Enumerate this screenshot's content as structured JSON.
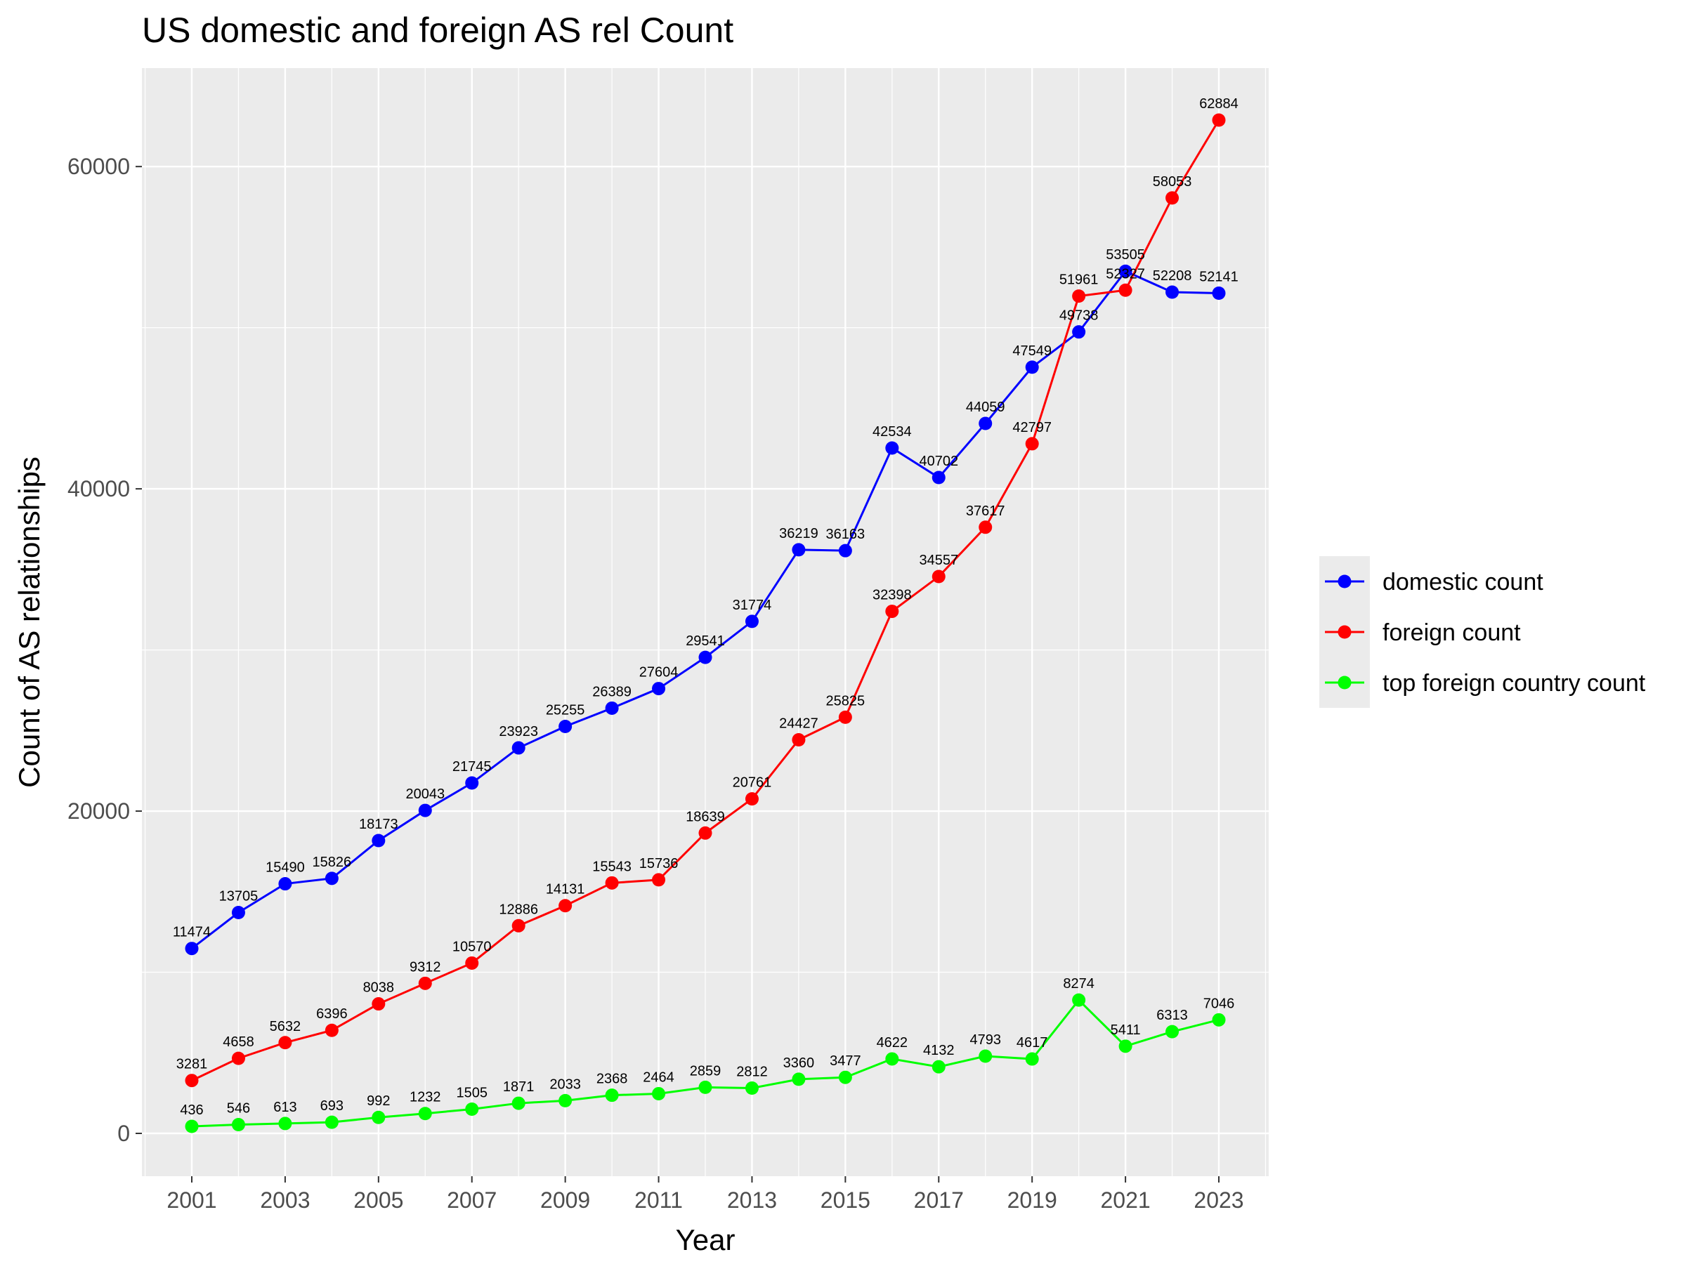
{
  "chart_data": {
    "type": "line",
    "title": "US domestic and foreign AS rel Count",
    "xlabel": "Year",
    "ylabel": "Count of AS relationships",
    "x": [
      2001,
      2002,
      2003,
      2004,
      2005,
      2006,
      2007,
      2008,
      2009,
      2010,
      2011,
      2012,
      2013,
      2014,
      2015,
      2016,
      2017,
      2018,
      2019,
      2020,
      2021,
      2022,
      2023
    ],
    "x_ticks": [
      "2001",
      "2003",
      "2005",
      "2007",
      "2009",
      "2011",
      "2013",
      "2015",
      "2017",
      "2019",
      "2021",
      "2023"
    ],
    "y_ticks": [
      "0",
      "20000",
      "40000",
      "60000"
    ],
    "xlim": [
      2001,
      2023
    ],
    "ylim": [
      0,
      62884
    ],
    "grid": true,
    "legend_position": "right",
    "series": [
      {
        "name": "domestic count",
        "color": "#0000ff",
        "values": [
          11474,
          13705,
          15490,
          15826,
          18173,
          20043,
          21745,
          23923,
          25255,
          26389,
          27604,
          29541,
          31774,
          36219,
          36163,
          42534,
          40702,
          44059,
          47549,
          49738,
          53505,
          52208,
          52141
        ]
      },
      {
        "name": "foreign count",
        "color": "#ff0000",
        "values": [
          3281,
          4658,
          5632,
          6396,
          8038,
          9312,
          10570,
          12886,
          14131,
          15543,
          15736,
          18639,
          20761,
          24427,
          25825,
          32398,
          34557,
          37617,
          42797,
          51961,
          52327,
          58053,
          62884
        ]
      },
      {
        "name": "top foreign country count",
        "color": "#00ff00",
        "values": [
          436,
          546,
          613,
          693,
          992,
          1232,
          1505,
          1871,
          2033,
          2368,
          2464,
          2859,
          2812,
          3360,
          3477,
          4622,
          4132,
          4793,
          4617,
          8274,
          5411,
          6313,
          7046
        ]
      }
    ]
  }
}
